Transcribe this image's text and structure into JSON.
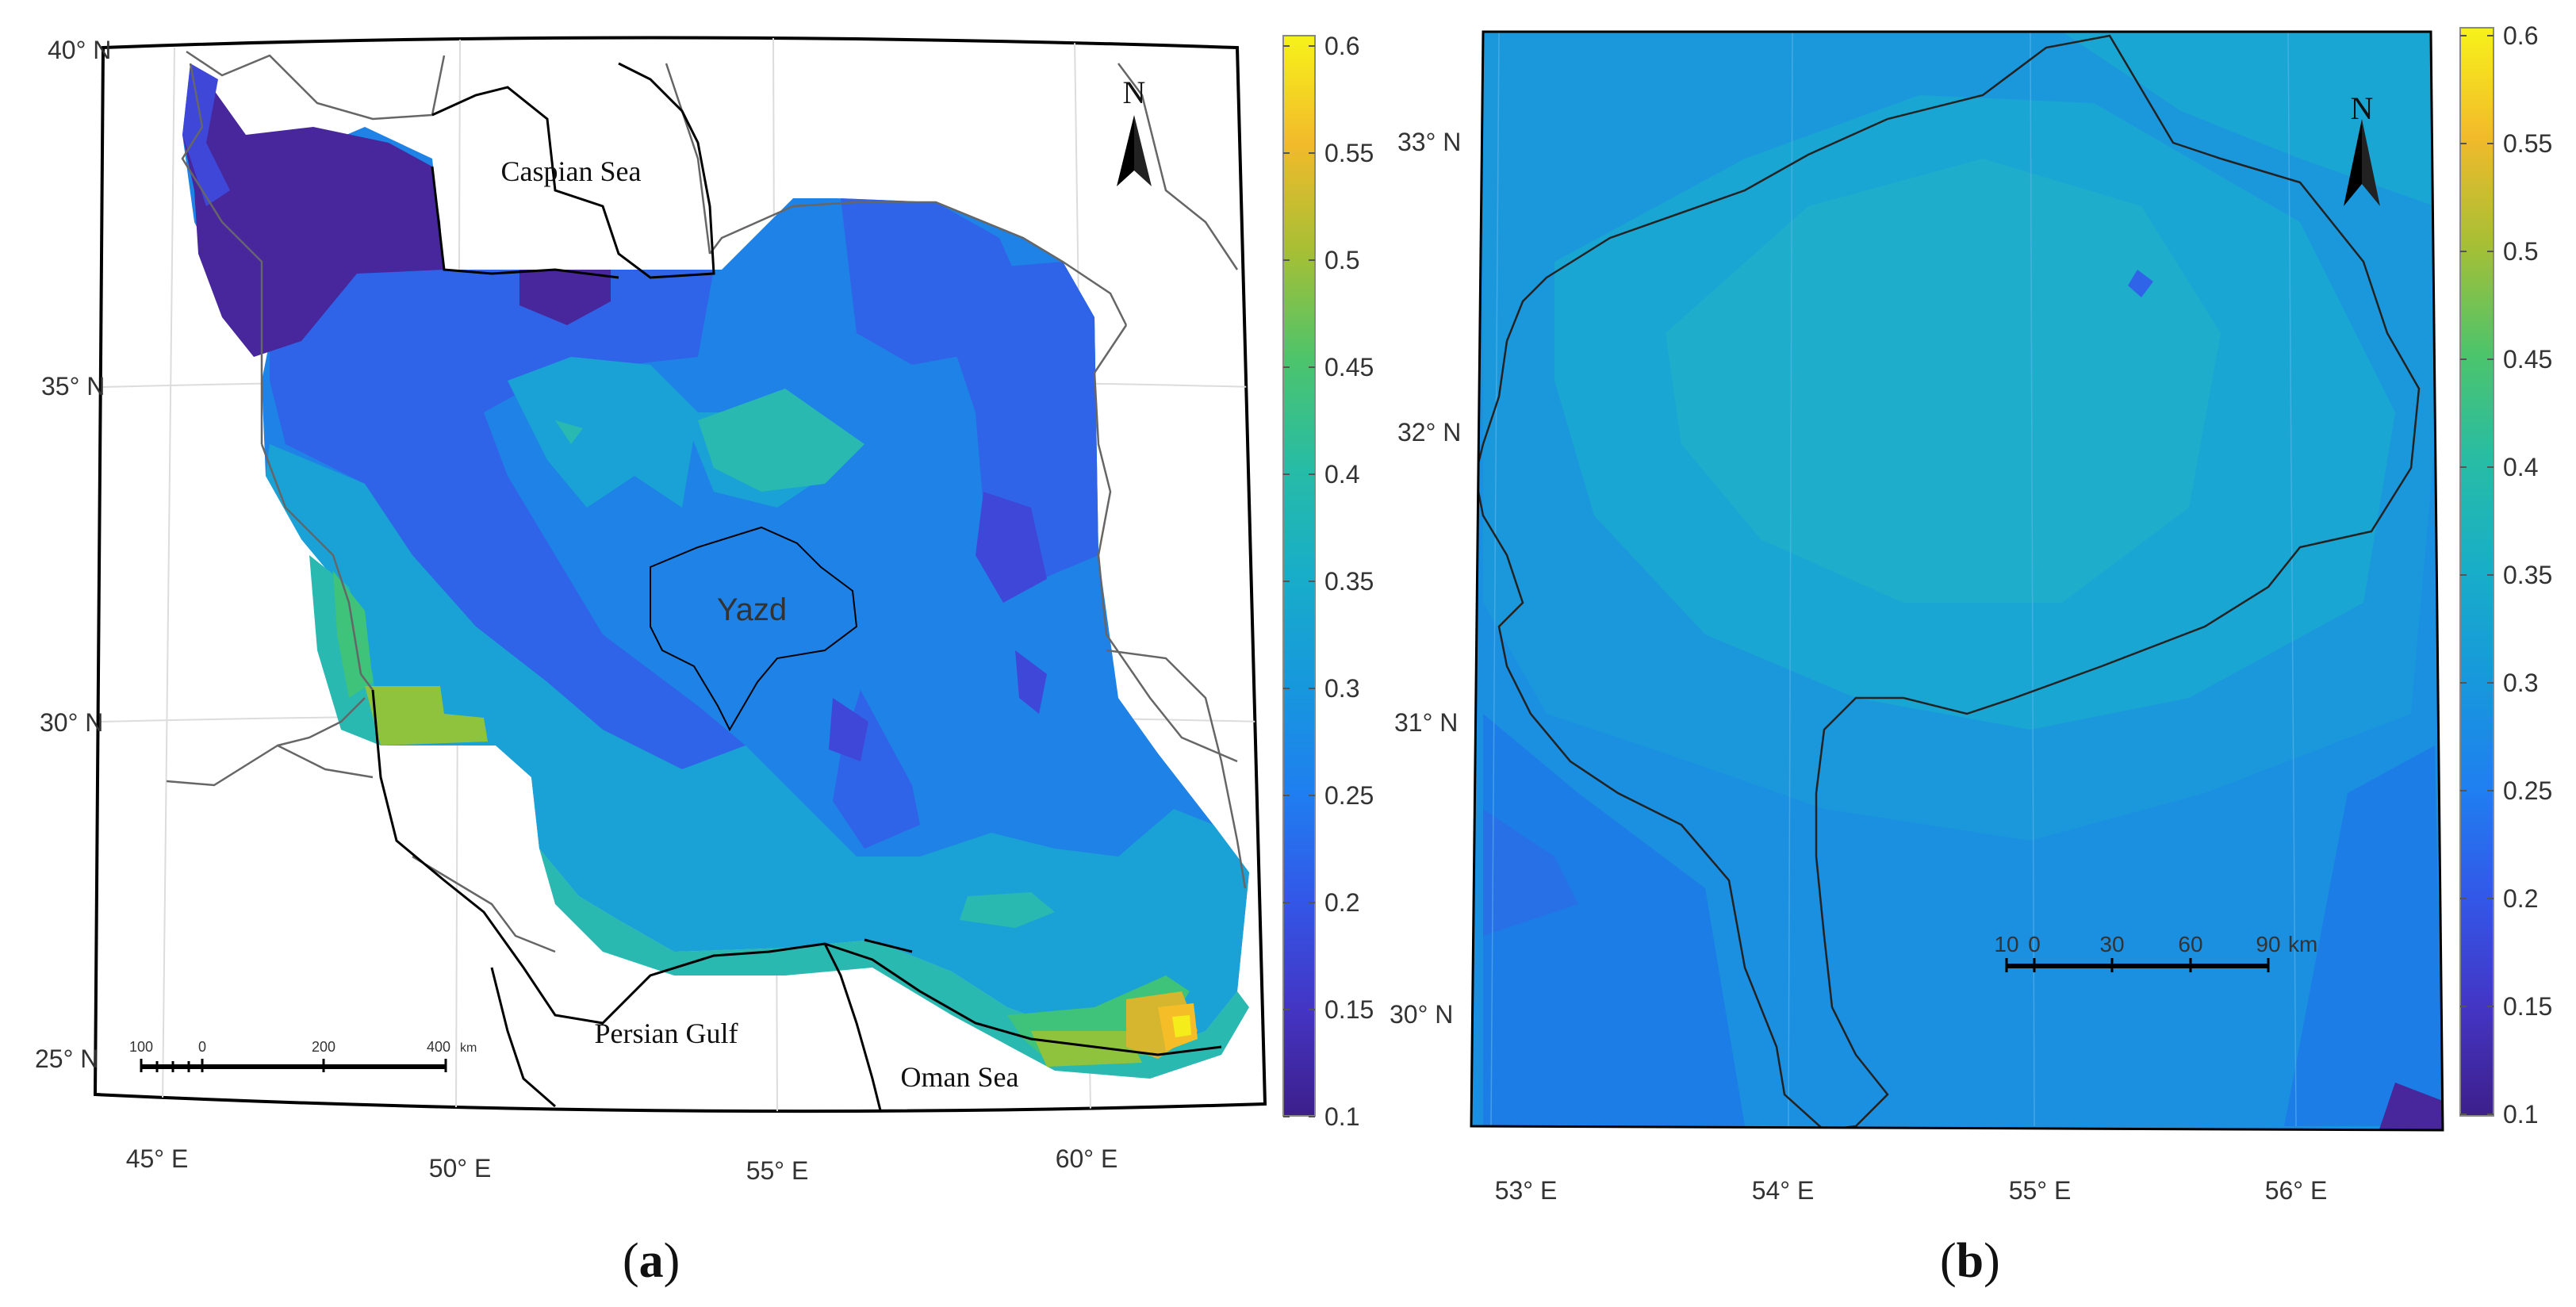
{
  "panel_a": {
    "caption_open": "(",
    "caption_letter": "a",
    "caption_close": ")",
    "lat_labels": [
      "40° N",
      "35° N",
      "30° N",
      "25° N"
    ],
    "lon_labels": [
      "45° E",
      "50° E",
      "55° E",
      "60° E"
    ],
    "places": {
      "caspian": "Caspian Sea",
      "yazd": "Yazd",
      "persian_gulf": "Persian Gulf",
      "oman_sea": "Oman Sea"
    },
    "scalebar": {
      "ticks": [
        "100",
        "0",
        "200",
        "400"
      ],
      "unit": "km"
    },
    "north_label": "N",
    "colorbar_ticks": [
      "0.6",
      "0.55",
      "0.5",
      "0.45",
      "0.4",
      "0.35",
      "0.3",
      "0.25",
      "0.2",
      "0.15",
      "0.1"
    ]
  },
  "panel_b": {
    "caption_open": "(",
    "caption_letter": "b",
    "caption_close": ")",
    "lat_labels": [
      "33° N",
      "32° N",
      "31° N",
      "30° N"
    ],
    "lon_labels": [
      "53° E",
      "54° E",
      "55° E",
      "56° E"
    ],
    "scalebar": {
      "ticks": [
        "10",
        "0",
        "30",
        "60",
        "90"
      ],
      "unit": "km"
    },
    "north_label": "N",
    "colorbar_ticks": [
      "0.6",
      "0.55",
      "0.5",
      "0.45",
      "0.4",
      "0.35",
      "0.3",
      "0.25",
      "0.2",
      "0.15",
      "0.1"
    ]
  },
  "colors": {
    "c010": "#47279b",
    "c015": "#3f47d8",
    "c020": "#2f64e8",
    "c025": "#1f82e6",
    "c030": "#1aa2d6",
    "c035": "#2ab9b0",
    "c040": "#3fc27a",
    "c045": "#8fc33e",
    "c050": "#d6b52f",
    "c055": "#f5be29",
    "c060": "#f5ec1b"
  }
}
